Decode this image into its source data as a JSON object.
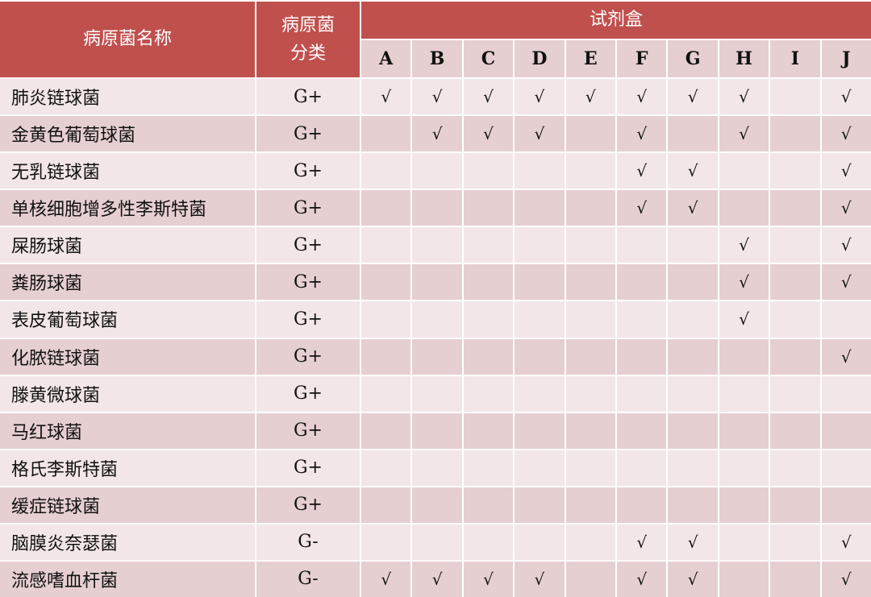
{
  "header": {
    "name": "病原菌名称",
    "class": "病原菌分类",
    "class_line1": "病原菌",
    "class_line2": "分类",
    "kits": "试剂盒",
    "columns": [
      "A",
      "B",
      "C",
      "D",
      "E",
      "F",
      "G",
      "H",
      "I",
      "J"
    ]
  },
  "check_symbol": "√",
  "colors": {
    "header": "#c0504d",
    "row_light": "#f2e6e7",
    "row_dark": "#e6cfd0"
  },
  "rows": [
    {
      "name": "肺炎链球菌",
      "class": "G+",
      "checks": [
        "A",
        "B",
        "C",
        "D",
        "E",
        "F",
        "G",
        "H",
        "J"
      ]
    },
    {
      "name": "金黄色葡萄球菌",
      "class": "G+",
      "checks": [
        "B",
        "C",
        "D",
        "F",
        "H",
        "J"
      ]
    },
    {
      "name": "无乳链球菌",
      "class": "G+",
      "checks": [
        "F",
        "G",
        "J"
      ]
    },
    {
      "name": "单核细胞增多性李斯特菌",
      "class": "G+",
      "checks": [
        "F",
        "G",
        "J"
      ]
    },
    {
      "name": "屎肠球菌",
      "class": "G+",
      "checks": [
        "H",
        "J"
      ]
    },
    {
      "name": "粪肠球菌",
      "class": "G+",
      "checks": [
        "H",
        "J"
      ]
    },
    {
      "name": "表皮葡萄球菌",
      "class": "G+",
      "checks": [
        "H"
      ]
    },
    {
      "name": "化脓链球菌",
      "class": "G+",
      "checks": [
        "J"
      ]
    },
    {
      "name": "滕黄微球菌",
      "class": "G+",
      "checks": []
    },
    {
      "name": "马红球菌",
      "class": "G+",
      "checks": []
    },
    {
      "name": "格氏李斯特菌",
      "class": "G+",
      "checks": []
    },
    {
      "name": "缓症链球菌",
      "class": "G+",
      "checks": []
    },
    {
      "name": "脑膜炎奈瑟菌",
      "class": "G-",
      "checks": [
        "F",
        "G",
        "J"
      ]
    },
    {
      "name": "流感嗜血杆菌",
      "class": "G-",
      "checks": [
        "A",
        "B",
        "C",
        "D",
        "F",
        "G",
        "J"
      ]
    }
  ]
}
